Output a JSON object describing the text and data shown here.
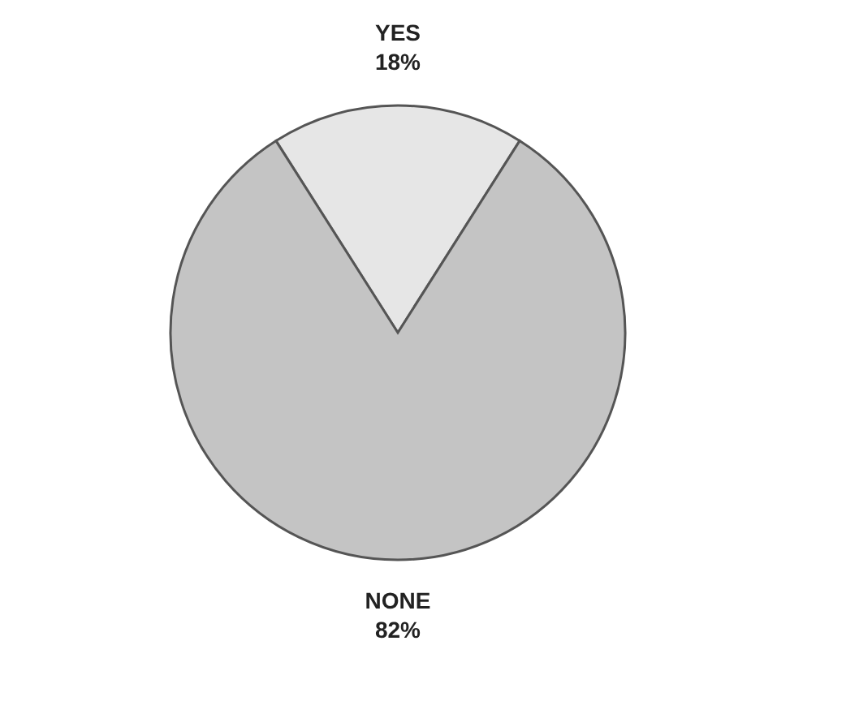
{
  "chart_data": {
    "type": "pie",
    "categories": [
      "YES",
      "NONE"
    ],
    "values": [
      18,
      82
    ],
    "value_labels": [
      "18%",
      "82%"
    ],
    "colors": [
      "#e6e6e6",
      "#c4c4c4"
    ],
    "legend": false
  }
}
